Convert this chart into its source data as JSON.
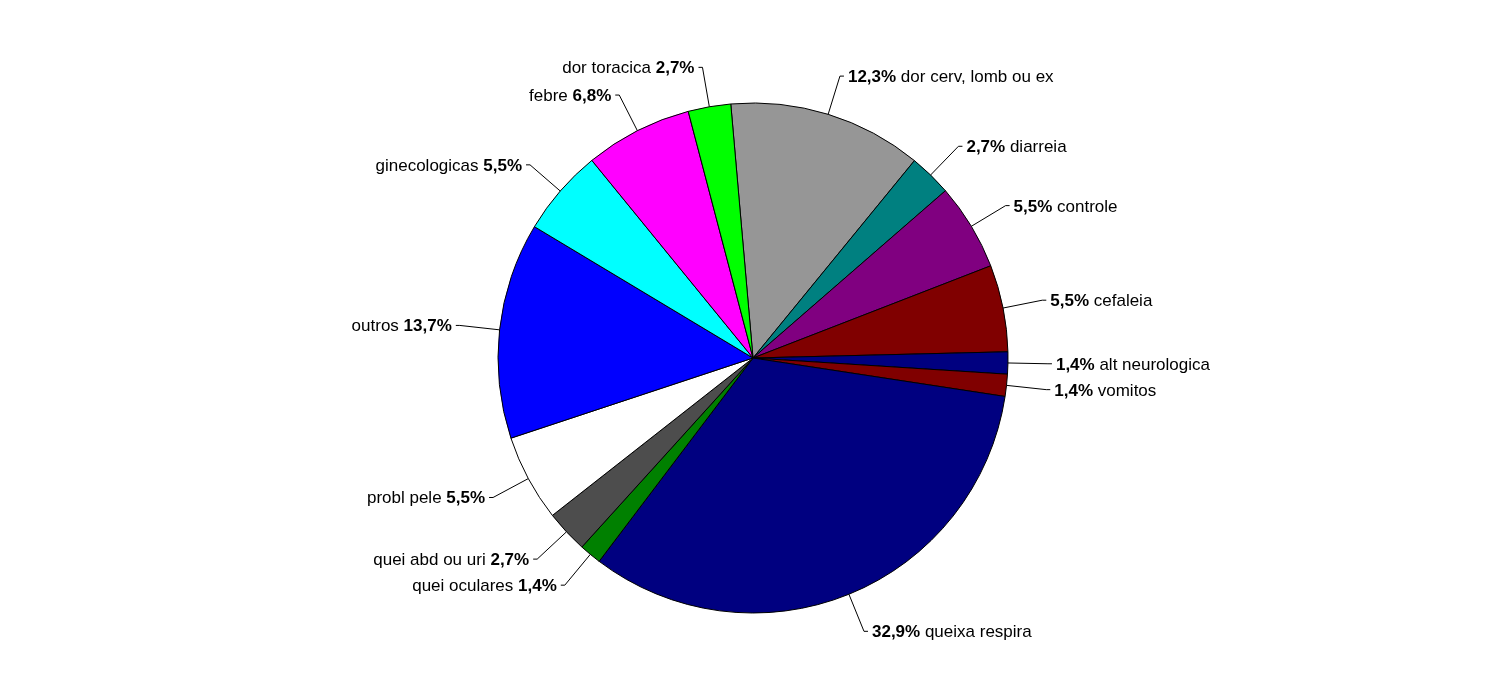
{
  "chart_data": {
    "type": "pie",
    "categories": [
      "dor cerv, lomb ou ex",
      "diarreia",
      "controle",
      "cefaleia",
      "alt neurologica",
      "vomitos",
      "queixa respira",
      "quei oculares",
      "quei abd ou uri",
      "probl pele",
      "outros",
      "ginecologicas",
      "febre",
      "dor toracica"
    ],
    "values": [
      12.3,
      2.7,
      5.5,
      5.5,
      1.4,
      1.4,
      32.9,
      1.4,
      2.7,
      5.5,
      13.7,
      5.5,
      6.8,
      2.7
    ],
    "value_labels": [
      "12,3%",
      "2,7%",
      "5,5%",
      "5,5%",
      "1,4%",
      "1,4%",
      "32,9%",
      "1,4%",
      "2,7%",
      "5,5%",
      "13,7%",
      "5,5%",
      "6,8%",
      "2,7%"
    ],
    "colors": [
      "#969696",
      "#008080",
      "#800080",
      "#800000",
      "#000080",
      "#800000",
      "#000080",
      "#008000",
      "#4d4d4d",
      "#ffffff",
      "#0000ff",
      "#00ffff",
      "#ff00ff",
      "#00ff00"
    ],
    "legend": false
  }
}
